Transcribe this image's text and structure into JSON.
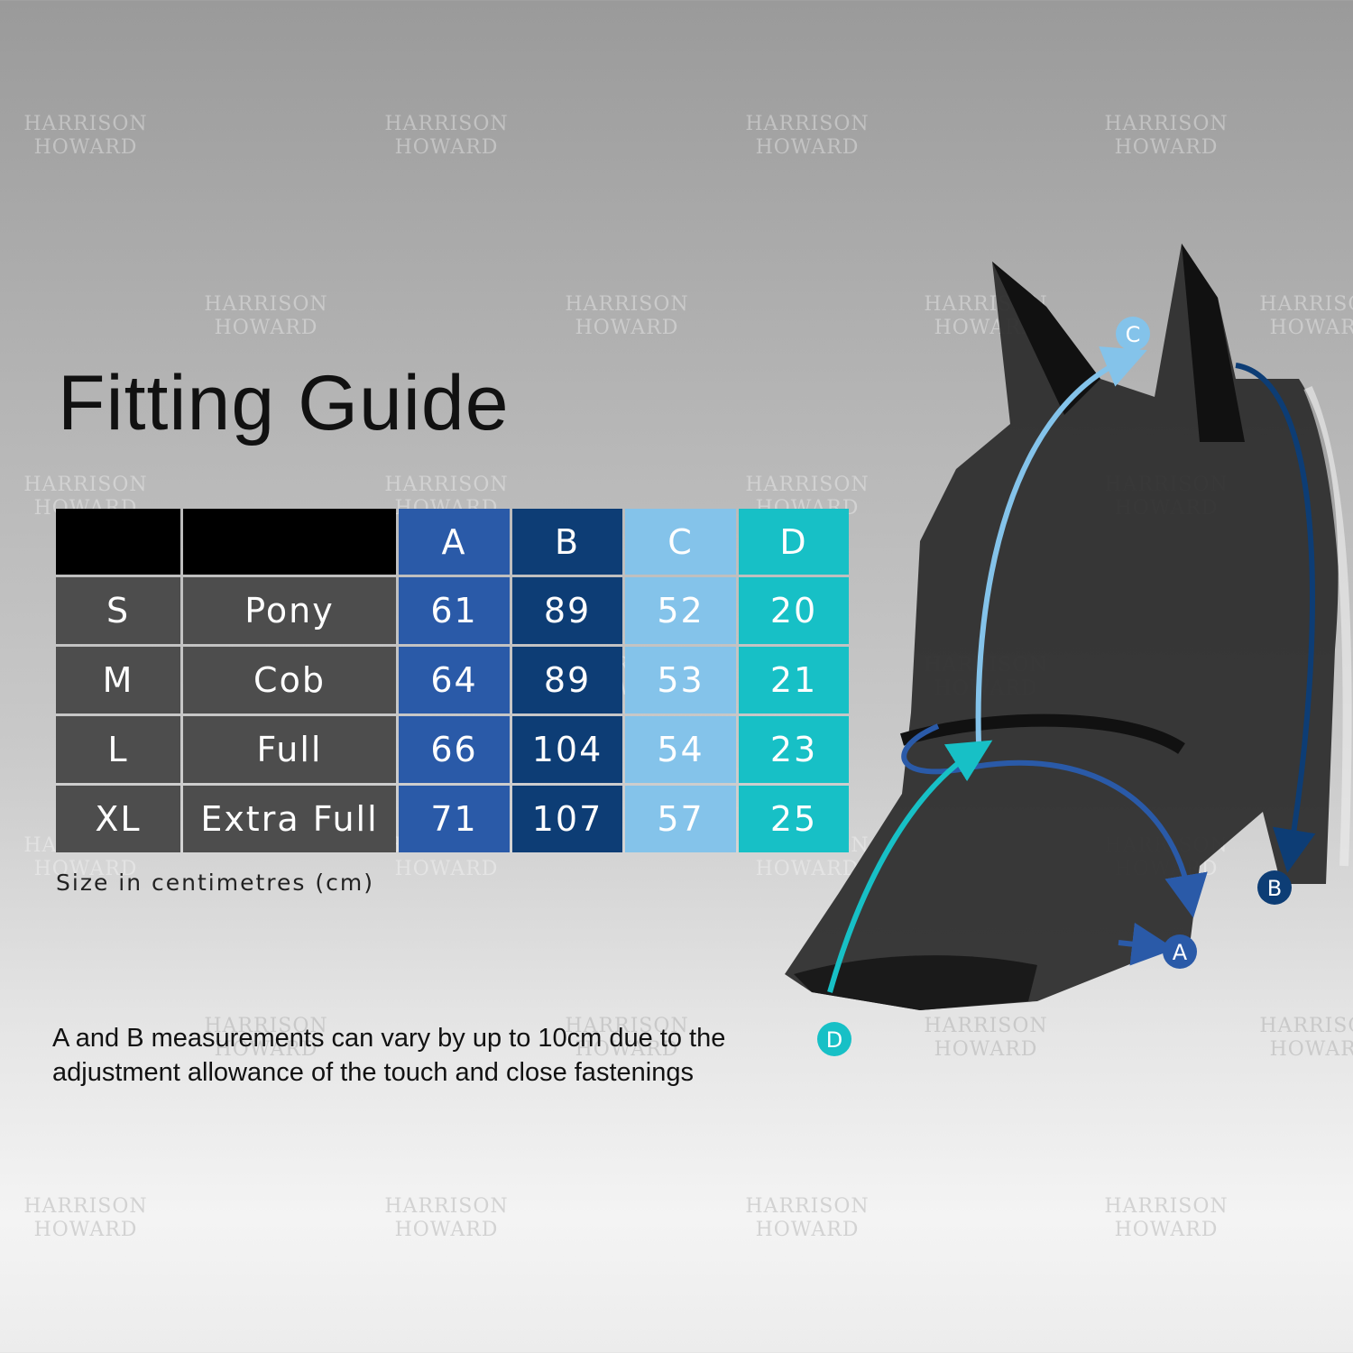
{
  "watermark": {
    "line1": "HARRISON",
    "line2": "HOWARD"
  },
  "title": "Fitting Guide",
  "table": {
    "headers": [
      "",
      "",
      "A",
      "B",
      "C",
      "D"
    ],
    "rows": [
      [
        "S",
        "Pony",
        "61",
        "89",
        "52",
        "20"
      ],
      [
        "M",
        "Cob",
        "64",
        "89",
        "53",
        "21"
      ],
      [
        "L",
        "Full",
        "66",
        "104",
        "54",
        "23"
      ],
      [
        "XL",
        "Extra Full",
        "71",
        "107",
        "57",
        "25"
      ]
    ],
    "colors": {
      "A": "#2a5aa8",
      "B": "#0d3d75",
      "C": "#84c3ea",
      "D": "#17c0c6"
    }
  },
  "unit_note": "Size in centimetres (cm)",
  "note": "A and B measurements can vary by up to 10cm due to the adjustment allowance of the touch and close fastenings",
  "diagram": {
    "labels": {
      "A": "A",
      "B": "B",
      "C": "C",
      "D": "D"
    }
  }
}
